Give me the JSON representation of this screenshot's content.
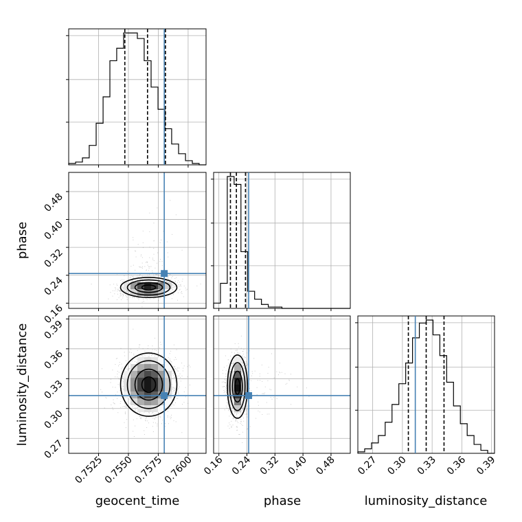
{
  "chart_data": {
    "type": "corner",
    "parameters": [
      "geocent_time",
      "phase",
      "luminosity_distance"
    ],
    "truths": {
      "geocent_time": 0.758,
      "phase": 0.245,
      "luminosity_distance": 0.313
    },
    "ranges": {
      "geocent_time": [
        0.75,
        0.7615
      ],
      "phase": [
        0.145,
        0.535
      ],
      "luminosity_distance": [
        0.255,
        0.393
      ]
    },
    "ticks": {
      "geocent_time": [
        "0.7525",
        "0.7550",
        "0.7575",
        "0.7600"
      ],
      "phase": [
        "0.16",
        "0.24",
        "0.32",
        "0.40",
        "0.48"
      ],
      "luminosity_distance": [
        "0.27",
        "0.30",
        "0.33",
        "0.36",
        "0.39"
      ]
    },
    "quantiles": {
      "geocent_time": [
        0.7547,
        0.7566,
        0.7581
      ],
      "phase": [
        0.193,
        0.21,
        0.236
      ],
      "luminosity_distance": [
        0.306,
        0.324,
        0.342
      ]
    },
    "histograms": {
      "geocent_time": {
        "edges": [
          0.75,
          0.75058,
          0.75115,
          0.75172,
          0.7523,
          0.75288,
          0.75345,
          0.75402,
          0.7546,
          0.75518,
          0.75575,
          0.75632,
          0.7569,
          0.75748,
          0.75805,
          0.75862,
          0.7592,
          0.75978,
          0.76035,
          0.76092,
          0.7615
        ],
        "counts": [
          1,
          2,
          5,
          14,
          30,
          49,
          75,
          84,
          95,
          95,
          91,
          75,
          56,
          40,
          26,
          15,
          8,
          3,
          1,
          0
        ]
      },
      "phase": {
        "edges": [
          0.145,
          0.1645,
          0.184,
          0.2035,
          0.223,
          0.2425,
          0.262,
          0.2815,
          0.301,
          0.3205,
          0.34,
          0.3595,
          0.379,
          0.3985,
          0.418,
          0.4375,
          0.457,
          0.4765,
          0.496,
          0.5155,
          0.535
        ],
        "counts": [
          4,
          19,
          100,
          94,
          43,
          13,
          7,
          3,
          1,
          1,
          0,
          0,
          0,
          0,
          0,
          0,
          0,
          0,
          0,
          0
        ]
      },
      "luminosity_distance": {
        "edges": [
          0.255,
          0.2619,
          0.2688,
          0.2757,
          0.2826,
          0.2895,
          0.2964,
          0.3033,
          0.3102,
          0.3171,
          0.324,
          0.3309,
          0.3378,
          0.3447,
          0.3516,
          0.3585,
          0.3654,
          0.3723,
          0.3792,
          0.3861,
          0.393
        ],
        "counts": [
          1,
          3,
          7,
          12,
          21,
          33,
          47,
          61,
          78,
          88,
          90,
          80,
          66,
          48,
          32,
          20,
          12,
          6,
          2,
          0
        ]
      }
    },
    "grid": true,
    "truth_color": "#4682b4",
    "line_color": "#000000"
  }
}
